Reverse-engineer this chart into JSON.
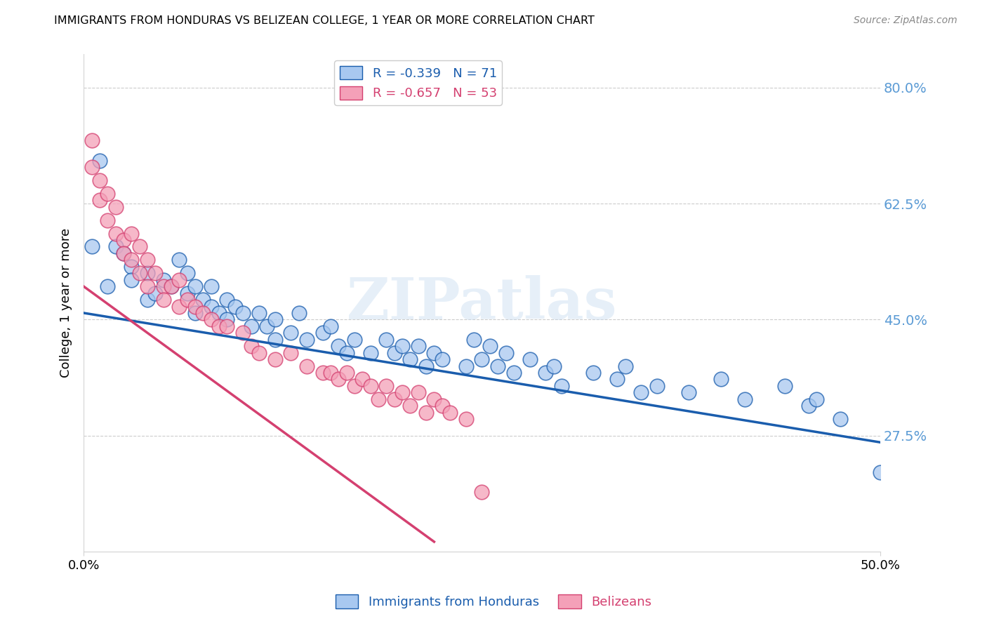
{
  "title": "IMMIGRANTS FROM HONDURAS VS BELIZEAN COLLEGE, 1 YEAR OR MORE CORRELATION CHART",
  "source": "Source: ZipAtlas.com",
  "ylabel": "College, 1 year or more",
  "xlim": [
    0.0,
    0.5
  ],
  "ylim": [
    0.1,
    0.85
  ],
  "yticks": [
    0.275,
    0.45,
    0.625,
    0.8
  ],
  "ytick_labels": [
    "27.5%",
    "45.0%",
    "62.5%",
    "80.0%"
  ],
  "xtick_vals": [
    0.0,
    0.5
  ],
  "xtick_labels": [
    "0.0%",
    "50.0%"
  ],
  "blue_color": "#A8C8F0",
  "pink_color": "#F4A0B8",
  "blue_line_color": "#1A5DAD",
  "pink_line_color": "#D44070",
  "legend_blue_R": "R = -0.339",
  "legend_blue_N": "N = 71",
  "legend_pink_R": "R = -0.657",
  "legend_pink_N": "N = 53",
  "label_blue": "Immigrants from Honduras",
  "label_pink": "Belizeans",
  "watermark": "ZIPatlas",
  "axis_color": "#5B9BD5",
  "grid_color": "#CCCCCC",
  "blue_line_x0": 0.0,
  "blue_line_y0": 0.46,
  "blue_line_x1": 0.5,
  "blue_line_y1": 0.265,
  "pink_line_x0": 0.0,
  "pink_line_y0": 0.5,
  "pink_line_x1": 0.22,
  "pink_line_y1": 0.115,
  "blue_scatter_x": [
    0.005,
    0.01,
    0.015,
    0.02,
    0.025,
    0.03,
    0.03,
    0.04,
    0.04,
    0.045,
    0.05,
    0.055,
    0.06,
    0.065,
    0.065,
    0.07,
    0.07,
    0.075,
    0.08,
    0.08,
    0.085,
    0.09,
    0.09,
    0.095,
    0.1,
    0.105,
    0.11,
    0.115,
    0.12,
    0.12,
    0.13,
    0.135,
    0.14,
    0.15,
    0.155,
    0.16,
    0.165,
    0.17,
    0.18,
    0.19,
    0.195,
    0.2,
    0.205,
    0.21,
    0.215,
    0.22,
    0.225,
    0.24,
    0.245,
    0.25,
    0.255,
    0.26,
    0.265,
    0.27,
    0.28,
    0.29,
    0.295,
    0.3,
    0.32,
    0.335,
    0.34,
    0.35,
    0.36,
    0.38,
    0.4,
    0.415,
    0.44,
    0.455,
    0.46,
    0.475,
    0.5
  ],
  "blue_scatter_y": [
    0.56,
    0.69,
    0.5,
    0.56,
    0.55,
    0.53,
    0.51,
    0.52,
    0.48,
    0.49,
    0.51,
    0.5,
    0.54,
    0.52,
    0.49,
    0.5,
    0.46,
    0.48,
    0.5,
    0.47,
    0.46,
    0.48,
    0.45,
    0.47,
    0.46,
    0.44,
    0.46,
    0.44,
    0.45,
    0.42,
    0.43,
    0.46,
    0.42,
    0.43,
    0.44,
    0.41,
    0.4,
    0.42,
    0.4,
    0.42,
    0.4,
    0.41,
    0.39,
    0.41,
    0.38,
    0.4,
    0.39,
    0.38,
    0.42,
    0.39,
    0.41,
    0.38,
    0.4,
    0.37,
    0.39,
    0.37,
    0.38,
    0.35,
    0.37,
    0.36,
    0.38,
    0.34,
    0.35,
    0.34,
    0.36,
    0.33,
    0.35,
    0.32,
    0.33,
    0.3,
    0.22
  ],
  "pink_scatter_x": [
    0.005,
    0.005,
    0.01,
    0.01,
    0.015,
    0.015,
    0.02,
    0.02,
    0.025,
    0.025,
    0.03,
    0.03,
    0.035,
    0.035,
    0.04,
    0.04,
    0.045,
    0.05,
    0.05,
    0.055,
    0.06,
    0.06,
    0.065,
    0.07,
    0.075,
    0.08,
    0.085,
    0.09,
    0.1,
    0.105,
    0.11,
    0.12,
    0.13,
    0.14,
    0.15,
    0.155,
    0.16,
    0.165,
    0.17,
    0.175,
    0.18,
    0.185,
    0.19,
    0.195,
    0.2,
    0.205,
    0.21,
    0.215,
    0.22,
    0.225,
    0.23,
    0.24,
    0.25
  ],
  "pink_scatter_y": [
    0.72,
    0.68,
    0.66,
    0.63,
    0.64,
    0.6,
    0.62,
    0.58,
    0.57,
    0.55,
    0.58,
    0.54,
    0.56,
    0.52,
    0.54,
    0.5,
    0.52,
    0.5,
    0.48,
    0.5,
    0.51,
    0.47,
    0.48,
    0.47,
    0.46,
    0.45,
    0.44,
    0.44,
    0.43,
    0.41,
    0.4,
    0.39,
    0.4,
    0.38,
    0.37,
    0.37,
    0.36,
    0.37,
    0.35,
    0.36,
    0.35,
    0.33,
    0.35,
    0.33,
    0.34,
    0.32,
    0.34,
    0.31,
    0.33,
    0.32,
    0.31,
    0.3,
    0.19
  ]
}
